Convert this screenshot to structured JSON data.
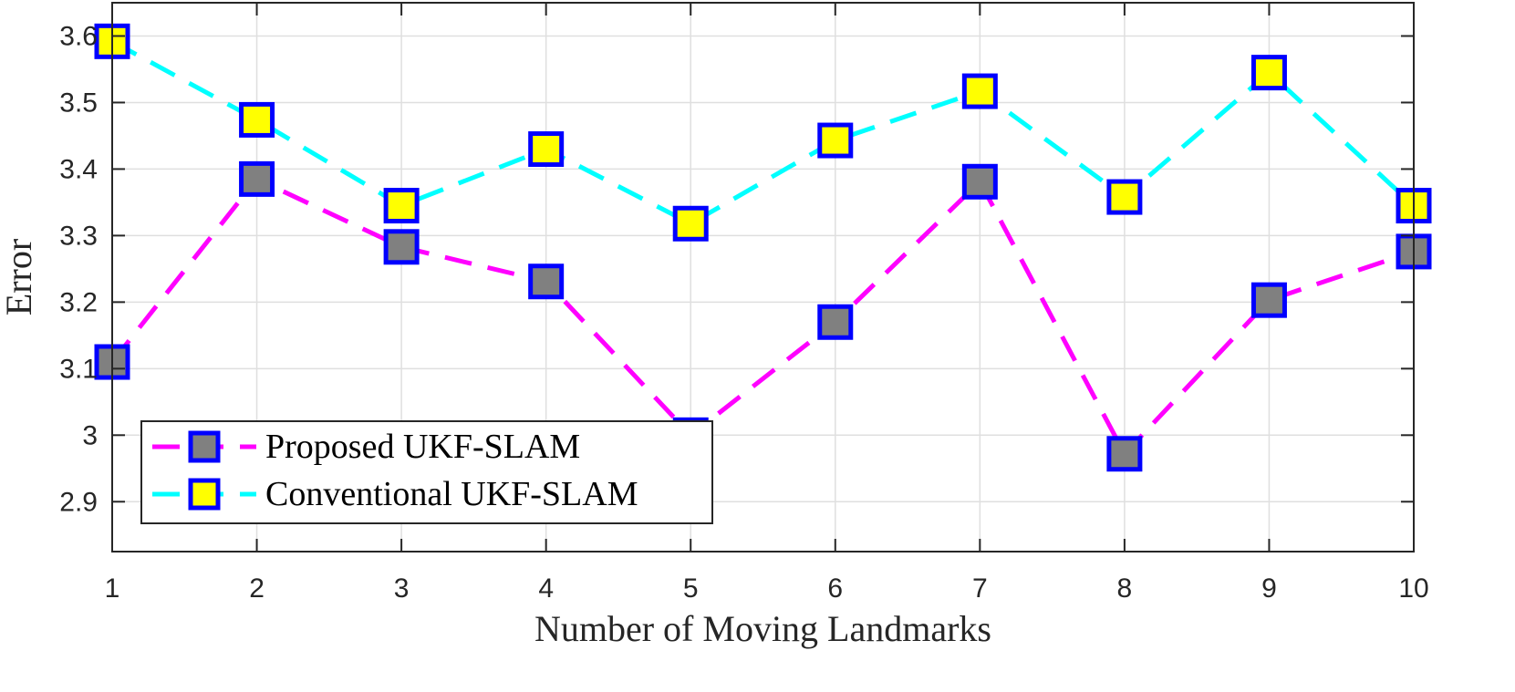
{
  "chart_data": {
    "type": "line",
    "title": "",
    "xlabel": "Number of Moving Landmarks",
    "ylabel": "Error",
    "x": [
      1,
      2,
      3,
      4,
      5,
      6,
      7,
      8,
      9,
      10
    ],
    "xlim": [
      1,
      10
    ],
    "ylim": [
      2.825,
      3.65
    ],
    "xticks": [
      1,
      2,
      3,
      4,
      5,
      6,
      7,
      8,
      9,
      10
    ],
    "yticks": [
      2.9,
      3.0,
      3.1,
      3.2,
      3.3,
      3.4,
      3.5,
      3.6
    ],
    "ytick_labels": [
      "2.9",
      "3",
      "3.1",
      "3.2",
      "3.3",
      "3.4",
      "3.5",
      "3.6"
    ],
    "grid": true,
    "legend_position": "bottom-left",
    "series": [
      {
        "name": "Proposed UKF-SLAM",
        "line_color": "#ff00ff",
        "line_style": "dashed",
        "marker": "square",
        "marker_face": "#808080",
        "marker_edge": "#0000ff",
        "values": [
          3.11,
          3.385,
          3.283,
          3.231,
          3.0,
          3.17,
          3.381,
          2.972,
          3.203,
          3.276
        ]
      },
      {
        "name": "Conventional UKF-SLAM",
        "line_color": "#00ffff",
        "line_style": "dashed",
        "marker": "square",
        "marker_face": "#ffff00",
        "marker_edge": "#0000ff",
        "values": [
          3.592,
          3.474,
          3.345,
          3.43,
          3.318,
          3.443,
          3.517,
          3.358,
          3.545,
          3.345
        ]
      }
    ]
  }
}
